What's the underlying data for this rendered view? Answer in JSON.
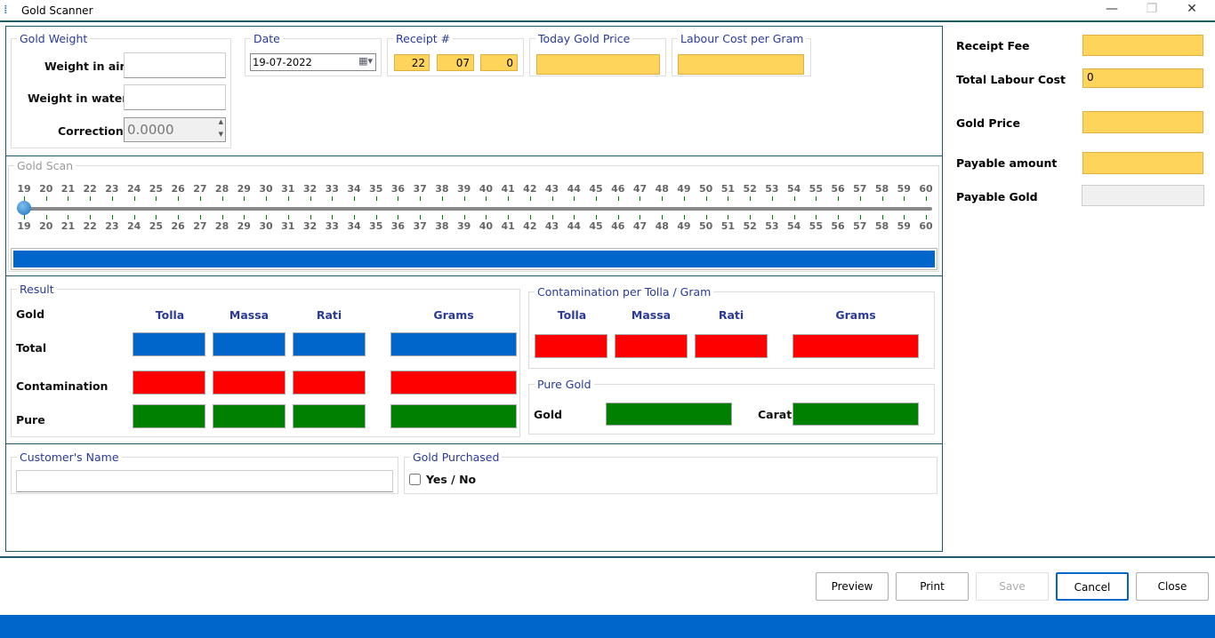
{
  "window": {
    "title": "Gold Scanner",
    "icon": "scale-icon"
  },
  "gold_weight": {
    "legend": "Gold Weight",
    "air_label": "Weight in air",
    "air_value": "",
    "water_label": "Weight in water",
    "water_value": "",
    "correction_label": "Correction",
    "correction_value": "0.0000"
  },
  "date": {
    "legend": "Date",
    "value": "19-07-2022"
  },
  "receipt": {
    "legend": "Receipt #",
    "parts": [
      "22",
      "07",
      "0"
    ]
  },
  "gold_price": {
    "legend": "Today Gold Price",
    "value": ""
  },
  "labour": {
    "legend": "Labour Cost per Gram",
    "value": ""
  },
  "scan": {
    "legend": "Gold Scan",
    "min": 19,
    "max": 60,
    "value": 19,
    "progress_percent": 100
  },
  "result": {
    "legend": "Result",
    "row_header": "Gold",
    "columns": [
      "Tolla",
      "Massa",
      "Rati",
      "Grams"
    ],
    "rows": [
      "Total",
      "Contamination",
      "Pure"
    ]
  },
  "contamination": {
    "legend": "Contamination per Tolla / Gram",
    "columns": [
      "Tolla",
      "Massa",
      "Rati",
      "Grams"
    ]
  },
  "pure_gold": {
    "legend": "Pure Gold",
    "gold_label": "Gold",
    "carat_label": "Carat"
  },
  "customer": {
    "legend": "Customer's Name",
    "value": ""
  },
  "purchased": {
    "legend": "Gold Purchased",
    "label": "Yes  / No",
    "checked": false
  },
  "summary": {
    "receipt_fee": "Receipt Fee",
    "total_labour": "Total Labour Cost",
    "total_labour_value": "0",
    "gold_price": "Gold Price",
    "payable_amount": "Payable amount",
    "payable_gold": "Payable Gold"
  },
  "buttons": {
    "preview": "Preview",
    "print": "Print",
    "save": "Save",
    "cancel": "Cancel",
    "close": "Close"
  },
  "colors": {
    "accent": "#0066cc",
    "yellow": "#ffd45a",
    "red": "#ff0000",
    "green": "#008000"
  }
}
